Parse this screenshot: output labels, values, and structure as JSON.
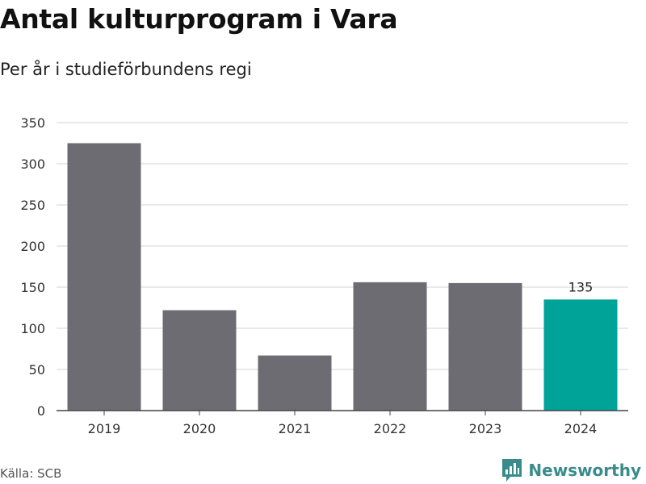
{
  "header": {
    "title": "Antal kulturprogram i Vara",
    "subtitle": "Per år i studieförbundens regi"
  },
  "footer": {
    "source": "Källa: SCB",
    "brand": "Newsworthy"
  },
  "colors": {
    "bar": "#6d6c73",
    "highlight": "#00a398",
    "grid": "#dcdcdc",
    "axis": "#444444",
    "brand": "#3a8c8c"
  },
  "chart_data": {
    "type": "bar",
    "categories": [
      "2019",
      "2020",
      "2021",
      "2022",
      "2023",
      "2024"
    ],
    "values": [
      325,
      122,
      67,
      156,
      155,
      135
    ],
    "ylim": [
      0,
      350
    ],
    "yticks": [
      0,
      50,
      100,
      150,
      200,
      250,
      300,
      350
    ],
    "highlight_index": 5,
    "data_labels": [
      {
        "index": 5,
        "text": "135"
      }
    ],
    "grid": true,
    "xlabel": "",
    "ylabel": ""
  }
}
